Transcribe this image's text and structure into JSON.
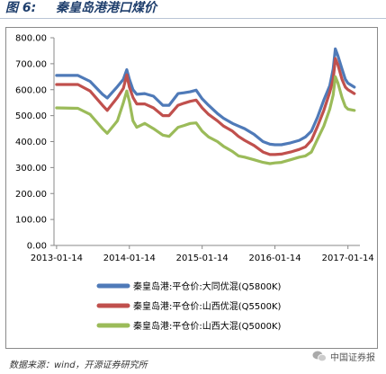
{
  "figure": {
    "label": "图 6:",
    "title": "秦皇岛港港口煤价"
  },
  "source": "数据来源：wind，开源证券研究所",
  "watermark": "中国证券报",
  "chart_data": {
    "type": "line",
    "x_ticks": [
      "2013-01-14",
      "2014-01-14",
      "2015-01-14",
      "2016-01-14",
      "2017-01-14"
    ],
    "y_ticks": [
      "0.00",
      "100.00",
      "200.00",
      "300.00",
      "400.00",
      "500.00",
      "600.00",
      "700.00",
      "800.00"
    ],
    "ylim": [
      0,
      800
    ],
    "xlim": [
      "2013-01-01",
      "2017-03-15"
    ],
    "grid": false,
    "legend_position": "bottom",
    "series": [
      {
        "name": "秦皇岛港:平仓价:大同优混(Q5800K)",
        "color": "#4f7ab8",
        "points": [
          [
            "2013-01-14",
            655
          ],
          [
            "2013-05-01",
            655
          ],
          [
            "2013-07-01",
            632
          ],
          [
            "2013-09-01",
            582
          ],
          [
            "2013-09-25",
            568
          ],
          [
            "2013-11-15",
            612
          ],
          [
            "2013-12-15",
            640
          ],
          [
            "2014-01-01",
            677
          ],
          [
            "2014-01-14",
            640
          ],
          [
            "2014-02-01",
            600
          ],
          [
            "2014-02-20",
            582
          ],
          [
            "2014-04-01",
            585
          ],
          [
            "2014-05-15",
            575
          ],
          [
            "2014-07-01",
            540
          ],
          [
            "2014-08-01",
            540
          ],
          [
            "2014-09-15",
            585
          ],
          [
            "2014-10-15",
            588
          ],
          [
            "2014-11-15",
            592
          ],
          [
            "2014-12-15",
            598
          ],
          [
            "2015-01-14",
            565
          ],
          [
            "2015-02-15",
            540
          ],
          [
            "2015-04-01",
            508
          ],
          [
            "2015-05-01",
            490
          ],
          [
            "2015-06-15",
            470
          ],
          [
            "2015-07-15",
            460
          ],
          [
            "2015-08-15",
            450
          ],
          [
            "2015-10-01",
            428
          ],
          [
            "2015-11-15",
            400
          ],
          [
            "2015-12-20",
            390
          ],
          [
            "2016-01-14",
            388
          ],
          [
            "2016-02-15",
            388
          ],
          [
            "2016-04-01",
            395
          ],
          [
            "2016-05-15",
            405
          ],
          [
            "2016-06-15",
            418
          ],
          [
            "2016-07-15",
            440
          ],
          [
            "2016-08-15",
            495
          ],
          [
            "2016-09-15",
            560
          ],
          [
            "2016-10-15",
            615
          ],
          [
            "2016-11-01",
            680
          ],
          [
            "2016-11-12",
            757
          ],
          [
            "2016-11-25",
            730
          ],
          [
            "2016-12-15",
            680
          ],
          [
            "2017-01-01",
            640
          ],
          [
            "2017-01-14",
            625
          ],
          [
            "2017-02-15",
            610
          ]
        ]
      },
      {
        "name": "秦皇岛港:平仓价:山西优混(Q5500K)",
        "color": "#c0504d",
        "points": [
          [
            "2013-01-14",
            620
          ],
          [
            "2013-05-01",
            620
          ],
          [
            "2013-07-01",
            595
          ],
          [
            "2013-09-01",
            540
          ],
          [
            "2013-09-25",
            520
          ],
          [
            "2013-11-15",
            570
          ],
          [
            "2013-12-15",
            605
          ],
          [
            "2014-01-01",
            657
          ],
          [
            "2014-01-14",
            610
          ],
          [
            "2014-02-01",
            570
          ],
          [
            "2014-02-20",
            545
          ],
          [
            "2014-04-01",
            545
          ],
          [
            "2014-05-15",
            530
          ],
          [
            "2014-07-01",
            500
          ],
          [
            "2014-08-01",
            500
          ],
          [
            "2014-09-15",
            540
          ],
          [
            "2014-10-15",
            548
          ],
          [
            "2014-11-15",
            555
          ],
          [
            "2014-12-15",
            560
          ],
          [
            "2015-01-14",
            530
          ],
          [
            "2015-02-15",
            505
          ],
          [
            "2015-04-01",
            480
          ],
          [
            "2015-05-01",
            460
          ],
          [
            "2015-06-15",
            440
          ],
          [
            "2015-07-15",
            420
          ],
          [
            "2015-08-15",
            405
          ],
          [
            "2015-10-01",
            385
          ],
          [
            "2015-11-15",
            360
          ],
          [
            "2015-12-20",
            350
          ],
          [
            "2016-01-14",
            350
          ],
          [
            "2016-02-15",
            352
          ],
          [
            "2016-04-01",
            360
          ],
          [
            "2016-05-15",
            370
          ],
          [
            "2016-06-15",
            380
          ],
          [
            "2016-07-15",
            405
          ],
          [
            "2016-08-15",
            460
          ],
          [
            "2016-09-15",
            520
          ],
          [
            "2016-10-15",
            590
          ],
          [
            "2016-11-01",
            640
          ],
          [
            "2016-11-12",
            720
          ],
          [
            "2016-11-25",
            695
          ],
          [
            "2016-12-15",
            640
          ],
          [
            "2017-01-01",
            610
          ],
          [
            "2017-01-14",
            600
          ],
          [
            "2017-02-15",
            585
          ]
        ]
      },
      {
        "name": "秦皇岛港:平仓价:山西大混(Q5000K)",
        "color": "#9bbb59",
        "points": [
          [
            "2013-01-14",
            530
          ],
          [
            "2013-05-01",
            528
          ],
          [
            "2013-07-01",
            505
          ],
          [
            "2013-09-01",
            450
          ],
          [
            "2013-09-25",
            432
          ],
          [
            "2013-11-15",
            480
          ],
          [
            "2013-12-15",
            550
          ],
          [
            "2014-01-01",
            595
          ],
          [
            "2014-01-14",
            555
          ],
          [
            "2014-02-01",
            480
          ],
          [
            "2014-02-20",
            455
          ],
          [
            "2014-04-01",
            470
          ],
          [
            "2014-05-15",
            450
          ],
          [
            "2014-07-01",
            425
          ],
          [
            "2014-08-01",
            420
          ],
          [
            "2014-09-15",
            455
          ],
          [
            "2014-10-15",
            462
          ],
          [
            "2014-11-15",
            470
          ],
          [
            "2014-12-15",
            472
          ],
          [
            "2015-01-14",
            440
          ],
          [
            "2015-02-15",
            418
          ],
          [
            "2015-04-01",
            400
          ],
          [
            "2015-05-01",
            382
          ],
          [
            "2015-06-15",
            362
          ],
          [
            "2015-07-15",
            345
          ],
          [
            "2015-08-15",
            340
          ],
          [
            "2015-10-01",
            330
          ],
          [
            "2015-11-15",
            320
          ],
          [
            "2015-12-20",
            315
          ],
          [
            "2016-01-14",
            318
          ],
          [
            "2016-02-15",
            320
          ],
          [
            "2016-04-01",
            330
          ],
          [
            "2016-05-15",
            340
          ],
          [
            "2016-06-15",
            345
          ],
          [
            "2016-07-15",
            360
          ],
          [
            "2016-08-15",
            410
          ],
          [
            "2016-09-15",
            460
          ],
          [
            "2016-10-15",
            525
          ],
          [
            "2016-11-01",
            580
          ],
          [
            "2016-11-12",
            650
          ],
          [
            "2016-11-25",
            625
          ],
          [
            "2016-12-15",
            570
          ],
          [
            "2017-01-01",
            535
          ],
          [
            "2017-01-14",
            525
          ],
          [
            "2017-02-15",
            520
          ]
        ]
      }
    ]
  }
}
